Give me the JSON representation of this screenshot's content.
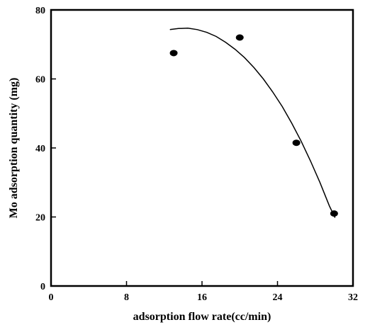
{
  "chart_data": {
    "type": "scatter",
    "title": "",
    "xlabel": "adsorption flow rate(cc/min)",
    "ylabel": "Mo adsorption quantity (mg)",
    "xlim": [
      0,
      32
    ],
    "ylim": [
      0,
      80
    ],
    "x_ticks": [
      0,
      8,
      16,
      24,
      32
    ],
    "y_ticks": [
      0,
      20,
      40,
      60,
      80
    ],
    "grid": false,
    "legend": "none",
    "points": [
      {
        "x": 13,
        "y": 67.5
      },
      {
        "x": 20,
        "y": 72
      },
      {
        "x": 26,
        "y": 41.5
      },
      {
        "x": 30,
        "y": 21
      }
    ],
    "trend_curve": [
      {
        "x": 12.6,
        "y": 74.3
      },
      {
        "x": 13.5,
        "y": 74.6
      },
      {
        "x": 14.5,
        "y": 74.7
      },
      {
        "x": 15.5,
        "y": 74.3
      },
      {
        "x": 16.5,
        "y": 73.5
      },
      {
        "x": 17.5,
        "y": 72.3
      },
      {
        "x": 18.5,
        "y": 70.6
      },
      {
        "x": 19.5,
        "y": 68.6
      },
      {
        "x": 20.5,
        "y": 66.2
      },
      {
        "x": 21.5,
        "y": 63.3
      },
      {
        "x": 22.5,
        "y": 60.0
      },
      {
        "x": 23.5,
        "y": 56.2
      },
      {
        "x": 24.5,
        "y": 52.0
      },
      {
        "x": 25.5,
        "y": 47.2
      },
      {
        "x": 26.5,
        "y": 42.0
      },
      {
        "x": 27.5,
        "y": 36.2
      },
      {
        "x": 28.5,
        "y": 30.0
      },
      {
        "x": 29.5,
        "y": 23.2
      },
      {
        "x": 30.1,
        "y": 19.8
      }
    ],
    "colors": {
      "axis": "#000000",
      "marker": "#000000",
      "curve": "#000000"
    }
  }
}
